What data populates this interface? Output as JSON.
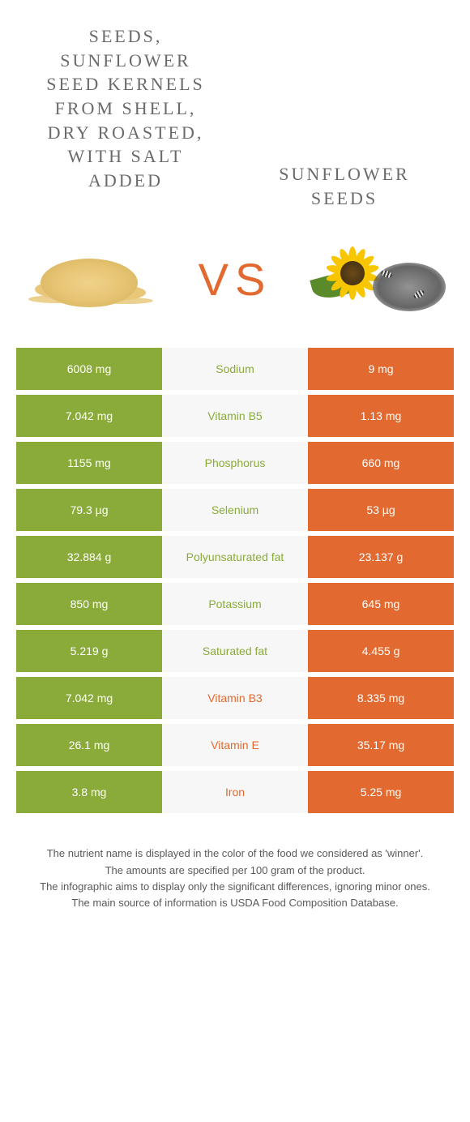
{
  "colors": {
    "left": "#8aab3a",
    "right": "#e2692f",
    "mid_bg": "#f7f7f7",
    "vs": "#e2692f"
  },
  "titles": {
    "left": "SEEDS, SUNFLOWER SEED KERNELS FROM SHELL, DRY ROASTED, WITH SALT ADDED",
    "right": "SUNFLOWER SEEDS"
  },
  "vs": "VS",
  "rows": [
    {
      "name": "Sodium",
      "left": "6008 mg",
      "right": "9 mg",
      "winner": "left"
    },
    {
      "name": "Vitamin B5",
      "left": "7.042 mg",
      "right": "1.13 mg",
      "winner": "left"
    },
    {
      "name": "Phosphorus",
      "left": "1155 mg",
      "right": "660 mg",
      "winner": "left"
    },
    {
      "name": "Selenium",
      "left": "79.3 µg",
      "right": "53 µg",
      "winner": "left"
    },
    {
      "name": "Polyunsaturated fat",
      "left": "32.884 g",
      "right": "23.137 g",
      "winner": "left"
    },
    {
      "name": "Potassium",
      "left": "850 mg",
      "right": "645 mg",
      "winner": "left"
    },
    {
      "name": "Saturated fat",
      "left": "5.219 g",
      "right": "4.455 g",
      "winner": "left"
    },
    {
      "name": "Vitamin B3",
      "left": "7.042 mg",
      "right": "8.335 mg",
      "winner": "right"
    },
    {
      "name": "Vitamin E",
      "left": "26.1 mg",
      "right": "35.17 mg",
      "winner": "right"
    },
    {
      "name": "Iron",
      "left": "3.8 mg",
      "right": "5.25 mg",
      "winner": "right"
    }
  ],
  "notes": {
    "l1": "The nutrient name is displayed in the color of the food we considered as 'winner'.",
    "l2": "The amounts are specified per 100 gram of the product.",
    "l3": "The infographic aims to display only the significant differences, ignoring minor ones.",
    "l4": "The main source of information is USDA Food Composition Database."
  }
}
